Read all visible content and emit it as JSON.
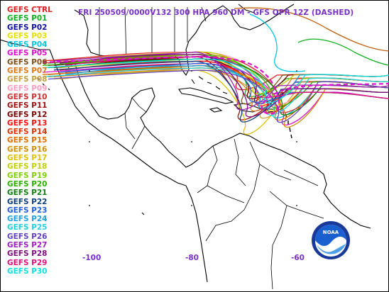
{
  "title": "FRI 250509/0000V132  300 HPA 960 DM - GFS OPR 12Z (DASHED)",
  "members": [
    {
      "label": "GEFS CTRL",
      "color": "#e02020"
    },
    {
      "label": "GEFS P01",
      "color": "#10b020"
    },
    {
      "label": "GEFS P02",
      "color": "#1010a0"
    },
    {
      "label": "GEFS P03",
      "color": "#e8e000"
    },
    {
      "label": "GEFS P04",
      "color": "#00c8e0"
    },
    {
      "label": "GEFS P05",
      "color": "#e010d0"
    },
    {
      "label": "GEFS P06",
      "color": "#805018"
    },
    {
      "label": "GEFS P07",
      "color": "#e07818"
    },
    {
      "label": "GEFS P08",
      "color": "#c8a040"
    },
    {
      "label": "GEFS P09",
      "color": "#ffa0c0"
    },
    {
      "label": "GEFS P10",
      "color": "#d03030"
    },
    {
      "label": "GEFS P11",
      "color": "#a01010"
    },
    {
      "label": "GEFS P12",
      "color": "#800000"
    },
    {
      "label": "GEFS P13",
      "color": "#ff1010"
    },
    {
      "label": "GEFS P14",
      "color": "#e03000"
    },
    {
      "label": "GEFS P15",
      "color": "#e07000"
    },
    {
      "label": "GEFS P16",
      "color": "#d09000"
    },
    {
      "label": "GEFS P17",
      "color": "#e0c000"
    },
    {
      "label": "GEFS P18",
      "color": "#c0d000"
    },
    {
      "label": "GEFS P19",
      "color": "#80d000"
    },
    {
      "label": "GEFS P20",
      "color": "#30b000"
    },
    {
      "label": "GEFS P21",
      "color": "#108010"
    },
    {
      "label": "GEFS P22",
      "color": "#104080"
    },
    {
      "label": "GEFS P23",
      "color": "#2060e0"
    },
    {
      "label": "GEFS P24",
      "color": "#20a0e0"
    },
    {
      "label": "GEFS P25",
      "color": "#20d0e0"
    },
    {
      "label": "GEFS P26",
      "color": "#6040c0"
    },
    {
      "label": "GEFS P27",
      "color": "#a020c0"
    },
    {
      "label": "GEFS P28",
      "color": "#801080"
    },
    {
      "label": "GEFS P29",
      "color": "#e01080"
    },
    {
      "label": "GEFS P30",
      "color": "#10e0e0"
    }
  ],
  "longitude_labels": [
    "-100",
    "-80",
    "-60"
  ],
  "logo_text": "NOAA",
  "colors": {
    "title": "#7a2fc9",
    "operational_dashed": "#e010d0",
    "coast": "#000000"
  }
}
